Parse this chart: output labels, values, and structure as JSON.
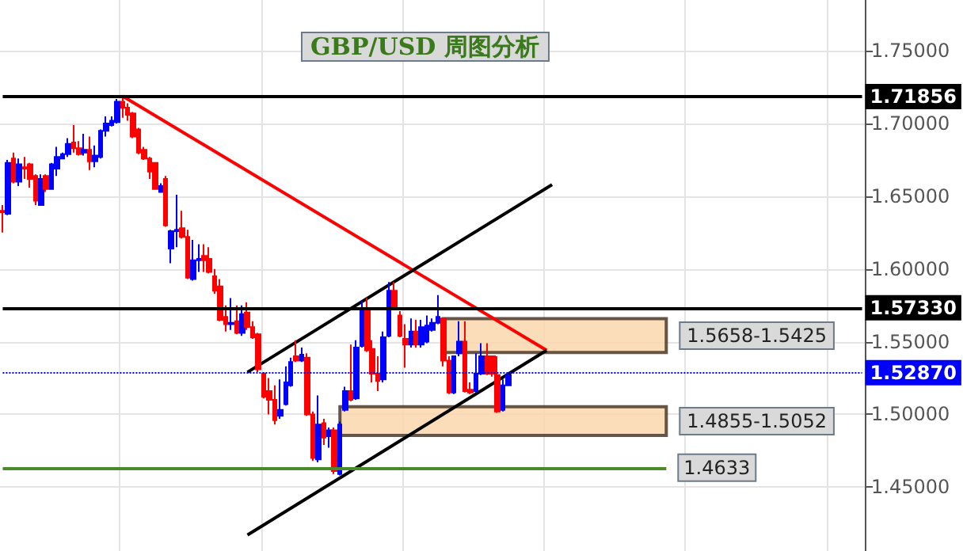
{
  "chart_data": {
    "type": "candlestick",
    "title": "GBP/USD 周图分析",
    "categories": [
      null,
      null,
      null,
      null,
      null,
      null,
      null,
      null,
      null,
      null,
      null,
      null,
      null,
      null,
      null,
      null,
      null,
      null,
      null,
      null,
      null,
      null,
      null,
      null,
      null,
      null,
      null,
      null,
      null,
      null,
      null,
      null,
      null,
      null,
      null,
      null,
      null,
      null,
      null,
      null,
      null,
      null,
      null,
      null,
      null,
      null,
      null,
      null,
      null,
      null,
      null,
      null,
      null,
      null,
      null,
      null,
      null,
      null,
      null,
      null,
      null,
      null,
      null,
      null,
      null,
      null,
      null,
      null,
      null,
      null,
      null,
      null,
      null,
      null,
      null,
      null,
      null,
      null,
      null,
      null,
      null,
      null,
      null,
      null,
      null,
      null,
      null,
      null,
      null,
      null,
      null,
      null,
      null,
      null,
      null,
      null,
      null,
      null,
      null,
      null,
      null,
      null,
      null,
      null,
      null,
      null,
      null,
      null,
      null,
      null,
      null,
      null,
      null,
      null,
      null,
      null,
      null,
      null,
      null,
      null,
      null,
      null,
      null,
      null,
      null,
      null,
      null,
      null,
      null,
      null,
      null,
      null,
      null,
      null,
      null,
      null,
      null,
      null,
      null,
      null,
      null,
      null,
      null,
      null,
      null,
      null,
      null,
      null,
      null,
      null,
      null,
      null,
      null,
      null,
      null,
      null,
      null,
      null,
      null
    ],
    "series": [
      {
        "colors": [
          "#ff0000",
          "#0000ff",
          "#ff0000",
          "#0000ff",
          "#ff0000",
          "#ff0000",
          "#ff0000",
          "#0000ff",
          "#ff0000",
          "#0000ff",
          "#0000ff",
          "#0000ff",
          "#0000ff",
          "#ff0000",
          "#ff0000",
          "#0000ff",
          "#ff0000",
          "#0000ff",
          "#0000ff",
          "#0000ff",
          "#0000ff",
          "#0000ff",
          "#ff0000",
          "#ff0000",
          "#ff0000",
          "#ff0000",
          "#ff0000",
          "#ff0000",
          "#ff0000",
          "#0000ff",
          "#ff0000",
          "#0000ff",
          "#0000ff",
          "#ff0000",
          "#ff0000",
          "#0000ff",
          "#0000ff",
          "#ff0000",
          "#ff0000",
          "#ff0000",
          "#ff0000",
          "#ff0000",
          "#0000ff",
          "#ff0000",
          "#0000ff",
          "#ff0000",
          "#ff0000",
          "#ff0000",
          "#ff0000",
          "#ff0000",
          "#ff0000",
          "#0000ff",
          "#0000ff",
          "#0000ff",
          "#ff0000",
          "#0000ff",
          "#ff0000",
          "#ff0000",
          "#0000ff",
          "#ff0000",
          "#0000ff",
          "#ff0000",
          "#0000ff",
          "#0000ff",
          "#ff0000",
          "#0000ff",
          "#0000ff",
          "#ff0000",
          "#ff0000",
          "#ff0000",
          "#0000ff",
          "#0000ff",
          "#ff0000",
          "#ff0000",
          "#ff0000",
          "#0000ff",
          "#ff0000",
          "#0000ff",
          "#0000ff",
          "#0000ff",
          "#0000ff",
          "#ff0000",
          "#ff0000",
          "#0000ff",
          "#0000ff",
          "#ff0000",
          "#ff0000",
          "#0000ff",
          "#0000ff",
          "#ff0000",
          "#ff0000",
          "#ff0000",
          "#0000ff",
          "#0000ff",
          null,
          null,
          null,
          null,
          null,
          null,
          null,
          null,
          null,
          null,
          null,
          null,
          null,
          null,
          null,
          null,
          null,
          null,
          null,
          null,
          null,
          null,
          null,
          null,
          null,
          null,
          null,
          null,
          null,
          null,
          null,
          null,
          null,
          null,
          null,
          null,
          null,
          null,
          null,
          null,
          null,
          null,
          null,
          null,
          null,
          null,
          null,
          null,
          null,
          null,
          null,
          null,
          null,
          null,
          null,
          null,
          null,
          null,
          null,
          null,
          null,
          null,
          null,
          null,
          null
        ],
        "ohlc": [
          [
            1.64,
            1.644,
            1.625,
            1.639
          ],
          [
            1.638,
            1.675,
            1.637,
            1.673
          ],
          [
            1.676,
            1.68,
            1.659,
            1.66
          ],
          [
            1.66,
            1.676,
            1.657,
            1.672
          ],
          [
            1.67,
            1.677,
            1.662,
            1.669
          ],
          [
            1.672,
            1.673,
            1.656,
            1.662
          ],
          [
            1.664,
            1.665,
            1.644,
            1.647
          ],
          [
            1.644,
            1.665,
            1.644,
            1.662
          ],
          [
            1.664,
            1.665,
            1.653,
            1.655
          ],
          [
            1.655,
            1.673,
            1.655,
            1.672
          ],
          [
            1.669,
            1.684,
            1.664,
            1.677
          ],
          [
            1.676,
            1.68,
            1.676,
            1.679
          ],
          [
            1.679,
            1.69,
            1.677,
            1.686
          ],
          [
            1.687,
            1.699,
            1.68,
            1.683
          ],
          [
            1.683,
            1.688,
            1.678,
            1.679
          ],
          [
            1.68,
            1.693,
            1.678,
            1.682
          ],
          [
            1.682,
            1.691,
            1.668,
            1.674
          ],
          [
            1.674,
            1.685,
            1.67,
            1.678
          ],
          [
            1.677,
            1.696,
            1.676,
            1.695
          ],
          [
            1.695,
            1.705,
            1.691,
            1.7
          ],
          [
            1.699,
            1.705,
            1.698,
            1.702
          ],
          [
            1.701,
            1.717,
            1.7,
            1.715
          ],
          [
            1.715,
            1.719,
            1.704,
            1.711
          ],
          [
            1.711,
            1.714,
            1.702,
            1.706
          ],
          [
            1.707,
            1.708,
            1.69,
            1.691
          ],
          [
            1.696,
            1.697,
            1.679,
            1.68
          ],
          [
            1.682,
            1.684,
            1.675,
            1.676
          ],
          [
            1.676,
            1.677,
            1.662,
            1.667
          ],
          [
            1.673,
            1.673,
            1.655,
            1.655
          ],
          [
            1.653,
            1.659,
            1.653,
            1.657
          ],
          [
            1.662,
            1.664,
            1.629,
            1.63
          ],
          [
            1.614,
            1.627,
            1.604,
            1.626
          ],
          [
            1.626,
            1.651,
            1.615,
            1.627
          ],
          [
            1.628,
            1.64,
            1.621,
            1.622
          ],
          [
            1.622,
            1.627,
            1.593,
            1.594
          ],
          [
            1.593,
            1.62,
            1.592,
            1.606
          ],
          [
            1.606,
            1.617,
            1.598,
            1.607
          ],
          [
            1.609,
            1.617,
            1.598,
            1.606
          ],
          [
            1.607,
            1.615,
            1.597,
            1.598
          ],
          [
            1.595,
            1.6,
            1.583,
            1.585
          ],
          [
            1.588,
            1.593,
            1.564,
            1.565
          ],
          [
            1.567,
            1.575,
            1.557,
            1.562
          ],
          [
            1.562,
            1.58,
            1.558,
            1.563
          ],
          [
            1.564,
            1.575,
            1.555,
            1.556
          ],
          [
            1.556,
            1.575,
            1.554,
            1.569
          ],
          [
            1.57,
            1.577,
            1.558,
            1.56
          ],
          [
            1.56,
            1.564,
            1.552,
            1.553
          ],
          [
            1.555,
            1.556,
            1.529,
            1.531
          ],
          [
            1.528,
            1.529,
            1.511,
            1.512
          ],
          [
            1.516,
            1.525,
            1.5,
            1.51
          ],
          [
            1.51,
            1.52,
            1.493,
            1.496
          ],
          [
            1.499,
            1.524,
            1.497,
            1.503
          ],
          [
            1.507,
            1.533,
            1.506,
            1.522
          ],
          [
            1.52,
            1.539,
            1.519,
            1.536
          ],
          [
            1.54,
            1.551,
            1.536,
            1.537
          ],
          [
            1.537,
            1.546,
            1.536,
            1.541
          ],
          [
            1.539,
            1.542,
            1.499,
            1.5
          ],
          [
            1.5,
            1.502,
            1.468,
            1.47
          ],
          [
            1.469,
            1.513,
            1.467,
            1.493
          ],
          [
            1.494,
            1.497,
            1.479,
            1.484
          ],
          [
            1.485,
            1.491,
            1.477,
            1.489
          ],
          [
            1.489,
            1.491,
            1.459,
            1.461
          ],
          [
            1.459,
            1.495,
            1.458,
            1.493
          ],
          [
            1.503,
            1.519,
            1.502,
            1.516
          ],
          [
            1.516,
            1.548,
            1.509,
            1.51
          ],
          [
            1.511,
            1.551,
            1.51,
            1.546
          ],
          [
            1.547,
            1.578,
            1.546,
            1.571
          ],
          [
            1.572,
            1.58,
            1.543,
            1.544
          ],
          [
            1.545,
            1.551,
            1.522,
            1.528
          ],
          [
            1.528,
            1.54,
            1.516,
            1.523
          ],
          [
            1.524,
            1.557,
            1.522,
            1.553
          ],
          [
            1.554,
            1.591,
            1.553,
            1.585
          ],
          [
            1.585,
            1.591,
            1.572,
            1.573
          ],
          [
            1.568,
            1.571,
            1.553,
            1.554
          ],
          [
            1.552,
            1.562,
            1.532,
            1.548
          ],
          [
            1.548,
            1.566,
            1.546,
            1.557
          ],
          [
            1.557,
            1.565,
            1.546,
            1.548
          ],
          [
            1.548,
            1.565,
            1.546,
            1.56
          ],
          [
            1.55,
            1.568,
            1.549,
            1.561
          ],
          [
            1.558,
            1.566,
            1.557,
            1.563
          ],
          [
            1.563,
            1.582,
            1.562,
            1.567
          ],
          [
            1.566,
            1.566,
            1.533,
            1.537
          ],
          [
            1.537,
            1.54,
            1.514,
            1.515
          ],
          [
            1.515,
            1.54,
            1.514,
            1.54
          ],
          [
            1.542,
            1.564,
            1.54,
            1.55
          ],
          [
            1.55,
            1.564,
            1.515,
            1.516
          ],
          [
            1.517,
            1.522,
            1.514,
            1.515
          ],
          [
            1.516,
            1.542,
            1.515,
            1.528
          ],
          [
            1.528,
            1.549,
            1.527,
            1.54
          ],
          [
            1.54,
            1.549,
            1.527,
            1.528
          ],
          [
            1.54,
            1.54,
            1.526,
            1.528
          ],
          [
            1.527,
            1.54,
            1.501,
            1.502
          ],
          [
            1.503,
            1.524,
            1.502,
            1.52
          ],
          [
            1.52,
            1.529,
            1.52,
            1.527
          ],
          null,
          null,
          null,
          null,
          null,
          null,
          null,
          null,
          null,
          null,
          null,
          null,
          null,
          null,
          null,
          null,
          null,
          null,
          null,
          null,
          null,
          null,
          null,
          null,
          null,
          null,
          null,
          null,
          null,
          null,
          null,
          null,
          null,
          null,
          null,
          null,
          null,
          null,
          null,
          null,
          null,
          null,
          null,
          null,
          null,
          null,
          null,
          null,
          null,
          null,
          null,
          null,
          null,
          null,
          null,
          null,
          null,
          null,
          null,
          null,
          null,
          null,
          null,
          null,
          null
        ]
      },
      {
        "type": "line",
        "color": "#ff0000",
        "values": [
          null,
          null,
          null,
          null,
          null,
          null,
          null,
          null,
          null,
          null,
          null,
          null,
          null,
          null,
          null,
          null,
          null,
          null,
          null,
          null,
          null,
          null,
          1.719,
          null,
          null,
          null,
          null,
          null,
          null,
          null,
          null,
          null,
          null,
          null,
          null,
          null,
          null,
          null,
          null,
          null,
          null,
          null,
          null,
          null,
          null,
          null,
          null,
          null,
          null,
          null,
          null,
          null,
          null,
          null,
          null,
          null,
          null,
          null,
          null,
          null,
          null,
          null,
          null,
          null,
          null,
          null,
          null,
          null,
          null,
          null,
          null,
          null,
          null,
          null,
          null,
          null,
          null,
          null,
          null,
          null,
          null,
          null,
          null,
          null,
          null,
          null,
          null,
          null,
          null,
          null,
          null,
          null,
          null,
          null,
          null,
          null,
          null,
          null,
          null,
          null,
          1.544,
          null,
          null,
          null,
          null,
          null,
          null,
          null,
          null,
          null,
          null,
          null,
          null,
          null,
          null,
          null,
          null,
          null,
          null,
          null,
          null,
          null,
          null,
          null,
          null,
          null,
          null,
          null,
          null,
          null,
          null,
          null,
          null,
          null,
          null,
          null,
          null,
          null,
          null,
          null,
          null,
          null,
          null,
          null,
          null,
          null,
          null,
          null,
          null,
          null,
          null,
          null,
          null,
          null,
          null,
          null,
          null,
          null,
          null
        ]
      },
      {
        "type": "line",
        "color": "#000000",
        "values": [
          null,
          null,
          null,
          null,
          null,
          null,
          null,
          null,
          null,
          null,
          null,
          null,
          null,
          null,
          null,
          null,
          null,
          null,
          null,
          null,
          null,
          null,
          null,
          null,
          null,
          null,
          null,
          null,
          null,
          null,
          null,
          null,
          null,
          null,
          null,
          null,
          null,
          null,
          null,
          null,
          null,
          null,
          null,
          null,
          null,
          1.529,
          null,
          null,
          null,
          null,
          null,
          null,
          null,
          null,
          null,
          null,
          null,
          null,
          null,
          null,
          null,
          null,
          null,
          null,
          null,
          null,
          null,
          null,
          null,
          null,
          null,
          null,
          null,
          null,
          null,
          null,
          null,
          null,
          null,
          null,
          null,
          null,
          null,
          null,
          null,
          null,
          null,
          null,
          null,
          null,
          null,
          null,
          null,
          null,
          null,
          null,
          null,
          null,
          null,
          null,
          null,
          1.658,
          null,
          null,
          null,
          null,
          null,
          null,
          null,
          null,
          null,
          null,
          null,
          null,
          null,
          null,
          null,
          null,
          null,
          null,
          null,
          null,
          null,
          null,
          null,
          null,
          null,
          null,
          null,
          null,
          null,
          null,
          null,
          null,
          null,
          null,
          null,
          null,
          null,
          null,
          null,
          null,
          null,
          null,
          null,
          null,
          null,
          null,
          null,
          null,
          null,
          null,
          null,
          null,
          null,
          null,
          null,
          null,
          null
        ]
      },
      {
        "type": "line",
        "color": "#000000",
        "values": [
          null,
          null,
          null,
          null,
          null,
          null,
          null,
          null,
          null,
          null,
          null,
          null,
          null,
          null,
          null,
          null,
          null,
          null,
          null,
          null,
          null,
          null,
          null,
          null,
          null,
          null,
          null,
          null,
          null,
          null,
          null,
          null,
          null,
          null,
          null,
          null,
          null,
          null,
          null,
          null,
          null,
          null,
          null,
          null,
          null,
          1.417,
          null,
          null,
          null,
          null,
          null,
          null,
          null,
          null,
          null,
          null,
          null,
          null,
          null,
          null,
          null,
          null,
          null,
          null,
          null,
          null,
          null,
          null,
          null,
          null,
          null,
          null,
          null,
          null,
          null,
          null,
          null,
          null,
          null,
          null,
          null,
          null,
          null,
          null,
          null,
          null,
          null,
          null,
          null,
          null,
          null,
          null,
          null,
          null,
          null,
          null,
          null,
          null,
          null,
          null,
          1.544,
          null,
          null,
          null,
          null,
          null,
          null,
          null,
          null,
          null,
          null,
          null,
          null,
          null,
          null,
          null,
          null,
          null,
          null,
          null,
          null,
          null,
          null,
          null,
          null,
          null,
          null,
          null,
          null,
          null,
          null,
          null,
          null,
          null,
          null,
          null,
          null,
          null,
          null,
          null,
          null,
          null,
          null,
          null,
          null,
          null,
          null,
          null,
          null,
          null,
          null,
          null,
          null,
          null,
          null,
          null,
          null,
          null,
          null
        ]
      }
    ],
    "ylim": [
      1.406,
      1.785
    ],
    "yticks": [
      {
        "value": 1.45,
        "label": "1.45000"
      },
      {
        "value": 1.5,
        "label": "1.50000"
      },
      {
        "value": 1.55,
        "label": "1.55000"
      },
      {
        "value": 1.6,
        "label": "1.60000"
      },
      {
        "value": 1.65,
        "label": "1.65000"
      },
      {
        "value": 1.7,
        "label": "1.70000"
      },
      {
        "value": 1.75,
        "label": "1.75000"
      }
    ],
    "tick_labels": "y",
    "grid": true,
    "ref_lines": [
      {
        "axis": "y",
        "value": 1.71856,
        "label": "1.71856",
        "color": "#000000",
        "line_style": "solid"
      },
      {
        "axis": "y",
        "value": 1.5733,
        "label": "1.57330",
        "color": "#000000",
        "line_style": "solid"
      },
      {
        "axis": "y",
        "value": 1.5287,
        "label": "1.52870",
        "color": "#0000ff",
        "line_style": "dotted"
      },
      {
        "axis": "y",
        "value": 1.4633,
        "label": "1.4633",
        "color": "#4a8a2a",
        "line_style": "solid"
      }
    ],
    "bands": [
      {
        "axis": "y",
        "from": 1.5425,
        "to": 1.5658,
        "label": "1.5658-1.5425",
        "color": "#fad7ae"
      },
      {
        "axis": "y",
        "from": 1.4855,
        "to": 1.5052,
        "label": "1.4855-1.5052",
        "color": "#fad7ae"
      }
    ]
  }
}
